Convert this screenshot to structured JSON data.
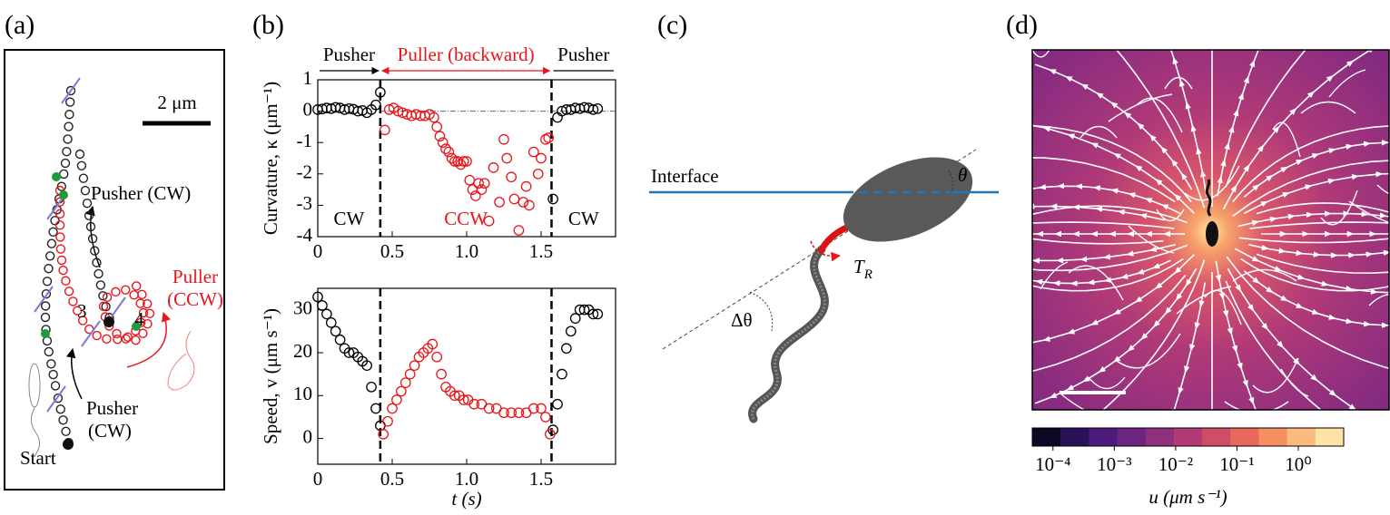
{
  "panel_labels": [
    "(a)",
    "(b)",
    "(c)",
    "(d)"
  ],
  "panel_a": {
    "scale_bar": "2 μm",
    "pusher_upper": "Pusher (CW)",
    "puller": [
      "Puller",
      "(CCW)"
    ],
    "pusher_lower": [
      "Pusher",
      "(CW)"
    ],
    "start": "Start",
    "markers": [
      "3",
      "4"
    ]
  },
  "panel_c": {
    "interface": "Interface",
    "theta": "θ",
    "torque": "T",
    "torque_sub": "R",
    "delta_theta": "Δθ"
  },
  "panel_d": {
    "colorbar": {
      "log": true,
      "lim": [
        4.6e-05,
        5.5
      ],
      "ticks": [
        {
          "value": 0.0001,
          "label": "10⁻⁴"
        },
        {
          "value": 0.001,
          "label": "10⁻³"
        },
        {
          "value": 0.01,
          "label": "10⁻²"
        },
        {
          "value": 0.1,
          "label": "10⁻¹"
        },
        {
          "value": 1,
          "label": "10⁰"
        }
      ],
      "colors": [
        "#0b0924",
        "#2a1157",
        "#4c1a7a",
        "#6e2582",
        "#8f2f7e",
        "#b23b74",
        "#d04d66",
        "#e8685b",
        "#f68f62",
        "#fbbb80",
        "#fde3a6"
      ],
      "label": "u (μm s⁻¹)"
    }
  },
  "chart_data": [
    {
      "type": "scatter",
      "ylabel": "Curvature, κ (μm⁻¹)",
      "xlim": [
        0,
        2
      ],
      "ylim": [
        -4,
        1
      ],
      "xticks": [
        0,
        0.5,
        {
          "value": 1,
          "label": "1.0"
        },
        1.5
      ],
      "yticks": [
        -4,
        -3,
        -2,
        -1,
        0,
        1
      ],
      "switch_times": [
        0.42,
        1.57
      ],
      "hline": 0,
      "phase_labels": [
        "Pusher",
        "Puller (backward)",
        "Pusher"
      ],
      "phase_colors": [
        "#000000",
        "#e8151b",
        "#000000"
      ],
      "rotation_labels": [
        "CW",
        "CCW",
        "CW"
      ],
      "series": [
        {
          "color": "#000000",
          "x": [
            0.0,
            0.03,
            0.06,
            0.09,
            0.12,
            0.15,
            0.18,
            0.21,
            0.24,
            0.27,
            0.3,
            0.33,
            0.36,
            0.39,
            0.42,
            1.58,
            1.61,
            1.64,
            1.67,
            1.7,
            1.73,
            1.76,
            1.79,
            1.82,
            1.85,
            1.88
          ],
          "values": [
            0.05,
            0.07,
            0.1,
            0.08,
            0.12,
            0.1,
            0.05,
            0.08,
            0.06,
            0.0,
            0.02,
            -0.05,
            0.05,
            0.2,
            0.6,
            -2.8,
            -0.2,
            0.0,
            0.05,
            0.05,
            0.1,
            0.08,
            0.12,
            0.1,
            0.05,
            0.08
          ]
        },
        {
          "color": "#e8151b",
          "x": [
            0.45,
            0.48,
            0.51,
            0.54,
            0.57,
            0.6,
            0.63,
            0.66,
            0.69,
            0.72,
            0.75,
            0.78,
            0.8,
            0.82,
            0.84,
            0.86,
            0.88,
            0.9,
            0.92,
            0.94,
            0.96,
            0.98,
            1.0,
            1.02,
            1.04,
            1.06,
            1.08,
            1.1,
            1.12,
            1.15,
            1.18,
            1.22,
            1.25,
            1.27,
            1.3,
            1.32,
            1.35,
            1.38,
            1.4,
            1.42,
            1.45,
            1.48,
            1.5,
            1.53,
            1.55
          ],
          "values": [
            -0.6,
            0.05,
            0.1,
            0.0,
            -0.05,
            -0.1,
            -0.15,
            -0.1,
            -0.15,
            -0.15,
            -0.1,
            -0.2,
            -0.5,
            -0.8,
            -1.0,
            -1.2,
            -1.3,
            -1.5,
            -1.6,
            -1.6,
            -1.7,
            -1.6,
            -1.6,
            -2.2,
            -2.5,
            -2.7,
            -2.3,
            -2.5,
            -2.3,
            -3.5,
            -1.8,
            -2.9,
            -0.9,
            -1.5,
            -2.1,
            -2.8,
            -3.8,
            -2.9,
            -2.4,
            -3.0,
            -1.3,
            -2.0,
            -1.5,
            -0.9,
            -0.85
          ]
        }
      ]
    },
    {
      "type": "scatter",
      "ylabel": "Speed, v (μm s⁻¹)",
      "xlabel": "t (s)",
      "xlim": [
        0,
        2
      ],
      "ylim": [
        -6,
        35
      ],
      "xticks": [
        0,
        0.5,
        {
          "value": 1,
          "label": "1.0"
        },
        1.5
      ],
      "yticks": [
        0,
        10,
        20,
        30
      ],
      "switch_times": [
        0.42,
        1.57
      ],
      "series": [
        {
          "color": "#000000",
          "x": [
            0,
            0.03,
            0.06,
            0.09,
            0.12,
            0.15,
            0.18,
            0.21,
            0.24,
            0.27,
            0.3,
            0.33,
            0.36,
            0.39,
            0.42,
            1.58,
            1.61,
            1.64,
            1.67,
            1.7,
            1.73,
            1.76,
            1.79,
            1.82,
            1.85,
            1.88
          ],
          "values": [
            33,
            31,
            29,
            27,
            25,
            23,
            21,
            20,
            20,
            19,
            18,
            17,
            12,
            7,
            3,
            2,
            8,
            15,
            21,
            25,
            28,
            30,
            30,
            30,
            29,
            29
          ]
        },
        {
          "color": "#e8151b",
          "x": [
            0.44,
            0.47,
            0.5,
            0.53,
            0.56,
            0.59,
            0.62,
            0.65,
            0.68,
            0.71,
            0.74,
            0.77,
            0.8,
            0.83,
            0.86,
            0.89,
            0.92,
            0.95,
            0.98,
            1.01,
            1.05,
            1.1,
            1.15,
            1.2,
            1.25,
            1.3,
            1.35,
            1.4,
            1.45,
            1.5,
            1.53,
            1.56
          ],
          "values": [
            1,
            4,
            7,
            9,
            11,
            13,
            15,
            17,
            19,
            20,
            21,
            22,
            19,
            15,
            12,
            11,
            10,
            10,
            9,
            9,
            8,
            8,
            7,
            7,
            6,
            6,
            6,
            6,
            7,
            7,
            5,
            1
          ]
        }
      ]
    }
  ]
}
